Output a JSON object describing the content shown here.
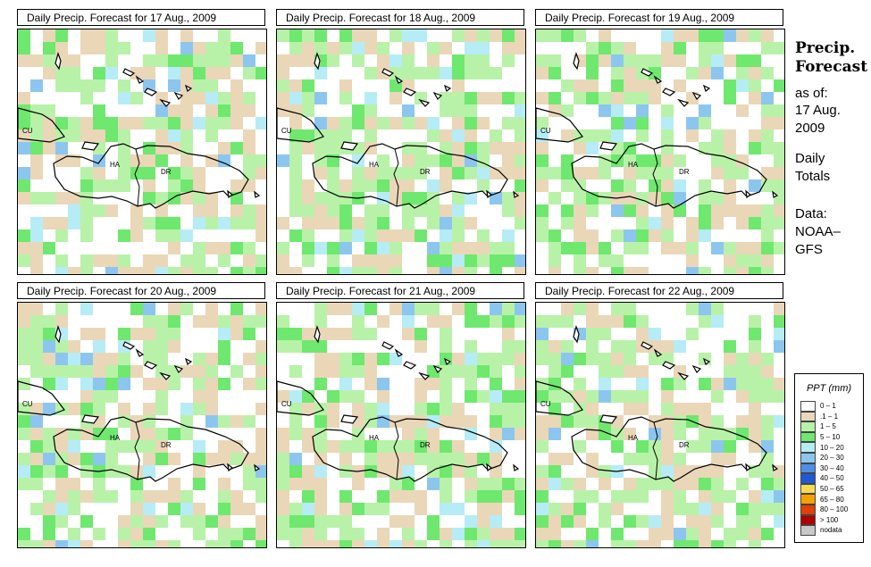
{
  "panels": [
    {
      "title": "Daily Precip. Forecast for  17 Aug., 2009",
      "seed": 17
    },
    {
      "title": "Daily Precip. Forecast for  18 Aug., 2009",
      "seed": 18
    },
    {
      "title": "Daily Precip. Forecast for  19 Aug., 2009",
      "seed": 19
    },
    {
      "title": "Daily Precip. Forecast for  20 Aug., 2009",
      "seed": 20
    },
    {
      "title": "Daily Precip. Forecast for  21 Aug., 2009",
      "seed": 21
    },
    {
      "title": "Daily Precip. Forecast for  22 Aug., 2009",
      "seed": 22
    }
  ],
  "map_labels": {
    "cu": "CU",
    "ha": "HA",
    "dr": "DR"
  },
  "side": {
    "title_line1": "Precip.",
    "title_line2": "Forecast",
    "asof": "as of:",
    "date_line1": "17 Aug.",
    "date_line2": "2009",
    "daily": "Daily",
    "totals": "Totals",
    "data_label": "Data:",
    "data_src1": "NOAA–",
    "data_src2": "GFS"
  },
  "legend": {
    "title": "PPT (mm)",
    "items": [
      {
        "label": "0 – 1",
        "color": "#ffffff"
      },
      {
        "label": ".1 – 1",
        "color": "#e9d7b8"
      },
      {
        "label": "1 – 5",
        "color": "#b8f2a8"
      },
      {
        "label": "5 – 10",
        "color": "#6ee86e"
      },
      {
        "label": "10 – 20",
        "color": "#b6ecf6"
      },
      {
        "label": "20 – 30",
        "color": "#8cc6ee"
      },
      {
        "label": "30 – 40",
        "color": "#4f8ee8"
      },
      {
        "label": "40 – 50",
        "color": "#1f5ad6"
      },
      {
        "label": "50 – 65",
        "color": "#f7dc4f"
      },
      {
        "label": "65 – 80",
        "color": "#f5a100"
      },
      {
        "label": "80 – 100",
        "color": "#e0400a"
      },
      {
        "label": "> 100",
        "color": "#b00000"
      },
      {
        "label": "nodata",
        "color": "#c8c8c8"
      }
    ]
  }
}
